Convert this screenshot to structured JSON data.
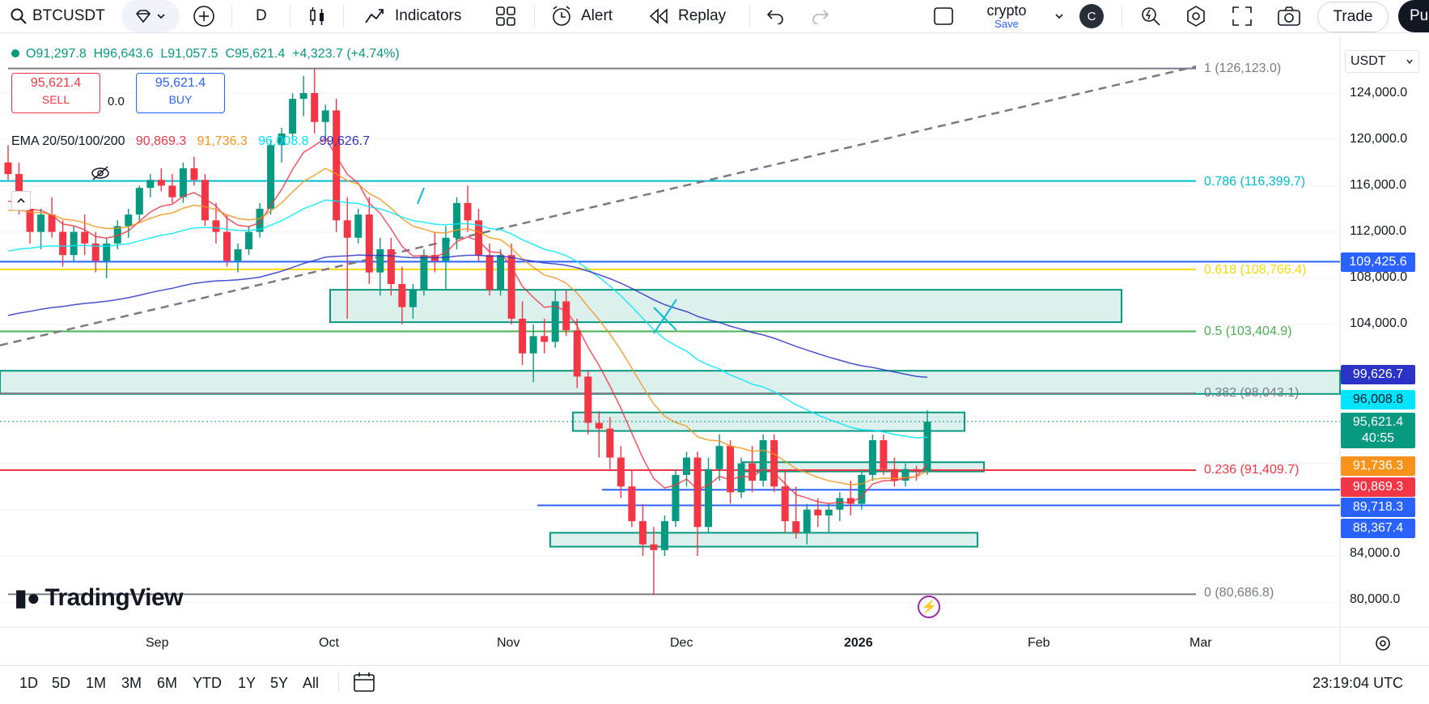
{
  "toolbar": {
    "symbol": "BTCUSDT",
    "interval": "D",
    "indicators_label": "Indicators",
    "alert_label": "Alert",
    "replay_label": "Replay",
    "layout_name": "crypto",
    "layout_save": "Save",
    "avatar_letter": "C",
    "trade_label": "Trade",
    "publish_label": "Pu"
  },
  "legend": {
    "open": "O91,297.8",
    "high": "H96,643.6",
    "low": "L91,057.5",
    "close": "C95,621.4",
    "change": "+4,323.7 (+4.74%)"
  },
  "order": {
    "sell_price": "95,621.4",
    "sell_label": "SELL",
    "spread": "0.0",
    "buy_price": "95,621.4",
    "buy_label": "BUY"
  },
  "ema": {
    "label": "EMA 20/50/100/200",
    "v20": "90,869.3",
    "v50": "91,736.3",
    "v100": "96,008.8",
    "v200": "99,626.7"
  },
  "currency": "USDT",
  "price_axis": [
    "124,000.0",
    "120,000.0",
    "116,000.0",
    "112,000.0",
    "108,000.0",
    "104,000.0",
    "84,000.0",
    "80,000.0"
  ],
  "time_axis": [
    "Sep",
    "Oct",
    "Nov",
    "Dec",
    "2026",
    "Feb",
    "Mar"
  ],
  "fib_labels": [
    "1 (126,123.0)",
    "0.786 (116,399.7)",
    "0.618 (108,766.4)",
    "0.5 (103,404.9)",
    "0.382 (98,043.1)",
    "0.236 (91,409.7)",
    "0 (80,686.8)"
  ],
  "price_tags": {
    "blue_top": "109,425.6",
    "ema200": "99,626.7",
    "ema100": "96,008.8",
    "last": "95,621.4",
    "countdown": "40:55",
    "ema50": "91,736.3",
    "ema20": "90,869.3",
    "blue_mid": "89,718.3",
    "blue_low": "88,367.4"
  },
  "ranges": [
    "1D",
    "5D",
    "1M",
    "3M",
    "6M",
    "YTD",
    "1Y",
    "5Y",
    "All"
  ],
  "clock": "23:19:04 UTC",
  "watermark": "TradingView",
  "colors": {
    "up": "#089981",
    "down": "#f23645",
    "ema20": "#f23645",
    "ema50": "#f7931a",
    "ema100": "#00e5ff",
    "ema200": "#2b32c6",
    "blue_line": "#2962ff"
  },
  "chart_data": {
    "type": "candlestick",
    "symbol": "BTCUSDT",
    "interval": "1D",
    "ylim": [
      78000,
      128000
    ],
    "candles_approx": [
      [
        118000,
        119500,
        116500,
        117000
      ],
      [
        117000,
        118000,
        113500,
        114000
      ],
      [
        114000,
        115500,
        111000,
        112000
      ],
      [
        112000,
        114000,
        110500,
        113500
      ],
      [
        113500,
        115000,
        111500,
        112000
      ],
      [
        112000,
        113000,
        109000,
        110000
      ],
      [
        110000,
        112500,
        109500,
        112000
      ],
      [
        112000,
        113500,
        110000,
        111000
      ],
      [
        111000,
        112000,
        108500,
        109500
      ],
      [
        109500,
        111500,
        108000,
        111000
      ],
      [
        111000,
        113000,
        110500,
        112500
      ],
      [
        112500,
        114000,
        111500,
        113500
      ],
      [
        113500,
        116000,
        113000,
        115800
      ],
      [
        115800,
        117000,
        115000,
        116500
      ],
      [
        116500,
        117500,
        115500,
        116000
      ],
      [
        116000,
        117000,
        114500,
        115000
      ],
      [
        115000,
        118000,
        114500,
        117500
      ],
      [
        117500,
        118500,
        116000,
        116500
      ],
      [
        116500,
        117000,
        112500,
        113000
      ],
      [
        113000,
        114500,
        111000,
        112000
      ],
      [
        112000,
        113500,
        109000,
        109500
      ],
      [
        109500,
        111000,
        108500,
        110500
      ],
      [
        110500,
        112500,
        110000,
        112000
      ],
      [
        112000,
        114500,
        111500,
        114000
      ],
      [
        114000,
        120000,
        113500,
        119500
      ],
      [
        119500,
        121000,
        118000,
        120500
      ],
      [
        120500,
        124000,
        120000,
        123500
      ],
      [
        123500,
        125500,
        122000,
        124000
      ],
      [
        124000,
        126100,
        120500,
        121500
      ],
      [
        121500,
        123000,
        120000,
        122500
      ],
      [
        122500,
        123500,
        112000,
        113000
      ],
      [
        113000,
        115000,
        104500,
        111500
      ],
      [
        111500,
        114000,
        111000,
        113500
      ],
      [
        113500,
        115000,
        107500,
        108500
      ],
      [
        108500,
        111500,
        106500,
        110500
      ],
      [
        110500,
        111500,
        106500,
        107500
      ],
      [
        107500,
        109000,
        104000,
        105500
      ],
      [
        105500,
        107500,
        104500,
        107000
      ],
      [
        107000,
        110500,
        106500,
        110000
      ],
      [
        110000,
        112000,
        108500,
        109500
      ],
      [
        109500,
        112500,
        107000,
        111500
      ],
      [
        111500,
        115000,
        110500,
        114500
      ],
      [
        114500,
        116000,
        112000,
        113000
      ],
      [
        113000,
        114000,
        109500,
        110000
      ],
      [
        110000,
        111000,
        106500,
        107000
      ],
      [
        107000,
        110500,
        106500,
        110000
      ],
      [
        110000,
        111000,
        104000,
        104500
      ],
      [
        104500,
        106000,
        100500,
        101500
      ],
      [
        101500,
        104000,
        99000,
        103000
      ],
      [
        103000,
        104500,
        101500,
        102500
      ],
      [
        102500,
        107000,
        102000,
        106000
      ],
      [
        106000,
        107000,
        103000,
        103500
      ],
      [
        103500,
        104500,
        98500,
        99500
      ],
      [
        99500,
        100000,
        94500,
        95500
      ],
      [
        95500,
        96500,
        92500,
        95000
      ],
      [
        95000,
        96000,
        91500,
        92500
      ],
      [
        92500,
        93500,
        89000,
        90000
      ],
      [
        90000,
        91500,
        86500,
        87000
      ],
      [
        87000,
        88500,
        84000,
        85000
      ],
      [
        85000,
        86500,
        80600,
        84500
      ],
      [
        84500,
        87500,
        84000,
        87000
      ],
      [
        87000,
        91500,
        86500,
        91000
      ],
      [
        91000,
        93000,
        90000,
        92500
      ],
      [
        92500,
        93000,
        84000,
        86500
      ],
      [
        86500,
        92500,
        86000,
        91500
      ],
      [
        91500,
        94500,
        90500,
        93500
      ],
      [
        93500,
        94000,
        88500,
        89500
      ],
      [
        89500,
        92500,
        89000,
        92000
      ],
      [
        92000,
        93500,
        89500,
        90500
      ],
      [
        90500,
        94500,
        90000,
        94000
      ],
      [
        94000,
        94500,
        89500,
        90000
      ],
      [
        90000,
        91500,
        86000,
        87000
      ],
      [
        87000,
        90000,
        85500,
        86000
      ],
      [
        86000,
        88500,
        85000,
        88000
      ],
      [
        88000,
        89000,
        86500,
        87500
      ],
      [
        87500,
        88500,
        86000,
        88000
      ],
      [
        88000,
        89500,
        87000,
        89000
      ],
      [
        89000,
        90500,
        87500,
        88500
      ],
      [
        88500,
        91500,
        88000,
        91000
      ],
      [
        91000,
        94500,
        90500,
        94000
      ],
      [
        94000,
        94500,
        91000,
        91500
      ],
      [
        91500,
        92500,
        90000,
        90500
      ],
      [
        90500,
        92000,
        90000,
        91500
      ],
      [
        91500,
        91800,
        90500,
        91300
      ],
      [
        91300,
        96600,
        91000,
        95600
      ]
    ],
    "ema20_end": 90869.3,
    "ema50_end": 91736.3,
    "ema100_end": 96008.8,
    "ema200_end": 99626.7,
    "fib_levels": [
      {
        "ratio": 1,
        "price": 126123.0
      },
      {
        "ratio": 0.786,
        "price": 116399.7
      },
      {
        "ratio": 0.618,
        "price": 108766.4
      },
      {
        "ratio": 0.5,
        "price": 103404.9
      },
      {
        "ratio": 0.382,
        "price": 98043.1
      },
      {
        "ratio": 0.236,
        "price": 91409.7
      },
      {
        "ratio": 0,
        "price": 80686.8
      }
    ],
    "horizontal_lines": [
      109425.6,
      89718.3,
      88367.4
    ],
    "zones": [
      {
        "top": 107000,
        "bottom": 104200
      },
      {
        "top": 100000,
        "bottom": 98000
      },
      {
        "top": 96400,
        "bottom": 94800
      },
      {
        "top": 92100,
        "bottom": 91300
      },
      {
        "top": 86000,
        "bottom": 84800
      }
    ]
  }
}
